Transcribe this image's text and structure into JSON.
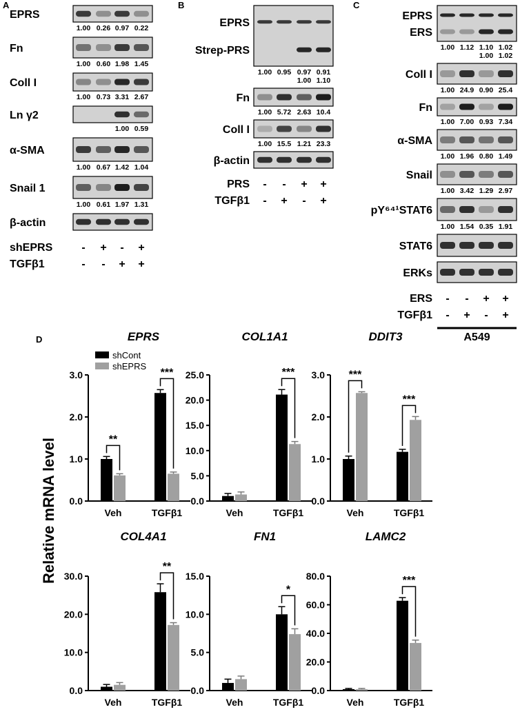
{
  "panels": {
    "A": {
      "letter": "A",
      "blots": [
        {
          "label": "EPRS",
          "h": 24,
          "intensity": [
            0.75,
            0.3,
            0.75,
            0.3
          ],
          "quant": [
            [
              "1.00",
              "0.26",
              "0.97",
              "0.22"
            ]
          ]
        },
        {
          "label": "Fn",
          "h": 30,
          "intensity": [
            0.45,
            0.3,
            0.75,
            0.6
          ],
          "quant": [
            [
              "1.00",
              "0.60",
              "1.98",
              "1.45"
            ]
          ]
        },
        {
          "label": "Coll I",
          "h": 26,
          "intensity": [
            0.35,
            0.3,
            0.85,
            0.75
          ],
          "quant": [
            [
              "1.00",
              "0.73",
              "3.31",
              "2.67"
            ]
          ]
        },
        {
          "label": "Ln γ2",
          "h": 24,
          "intensity": [
            0,
            0,
            0.8,
            0.5
          ],
          "quant": [
            [
              "",
              "",
              "1.00",
              "0.59"
            ]
          ]
        },
        {
          "label": "α-SMA",
          "h": 34,
          "intensity": [
            0.75,
            0.55,
            0.85,
            0.6
          ],
          "quant": [
            [
              "1.00",
              "0.67",
              "1.42",
              "1.04"
            ]
          ]
        },
        {
          "label": "Snail 1",
          "h": 32,
          "intensity": [
            0.55,
            0.35,
            0.9,
            0.7
          ],
          "quant": [
            [
              "1.00",
              "0.61",
              "1.97",
              "1.31"
            ]
          ]
        },
        {
          "label": "β-actin",
          "h": 24,
          "intensity": [
            0.8,
            0.8,
            0.8,
            0.8
          ],
          "quant": []
        }
      ],
      "conditions": [
        {
          "label": "shEPRS",
          "signs": [
            "-",
            "+",
            "-",
            "+"
          ]
        },
        {
          "label": "TGFβ1",
          "signs": [
            "-",
            "-",
            "+",
            "+"
          ]
        }
      ]
    },
    "B": {
      "letter": "B",
      "blots": [
        {
          "label": "EPRS",
          "label2": "Strep-PRS",
          "h": 88,
          "intensity": [
            0.75,
            0.75,
            0.75,
            0.75
          ],
          "intensity2": [
            0,
            0,
            0.85,
            0.85
          ],
          "quant": [
            [
              "1.00",
              "0.95",
              "0.97",
              "0.91"
            ],
            [
              "",
              "",
              "1.00",
              "1.10"
            ]
          ]
        },
        {
          "label": "Fn",
          "h": 26,
          "intensity": [
            0.3,
            0.8,
            0.55,
            0.9
          ],
          "quant": [
            [
              "1.00",
              "5.72",
              "2.63",
              "10.4"
            ]
          ]
        },
        {
          "label": "Coll I",
          "h": 26,
          "intensity": [
            0.15,
            0.7,
            0.35,
            0.8
          ],
          "quant": [
            [
              "1.00",
              "15.5",
              "1.21",
              "23.3"
            ]
          ]
        },
        {
          "label": "β-actin",
          "h": 24,
          "intensity": [
            0.8,
            0.8,
            0.8,
            0.8
          ],
          "quant": []
        }
      ],
      "conditions": [
        {
          "label": "PRS",
          "signs": [
            "-",
            "-",
            "+",
            "+"
          ]
        },
        {
          "label": "TGFβ1",
          "signs": [
            "-",
            "+",
            "-",
            "+"
          ]
        }
      ]
    },
    "C": {
      "letter": "C",
      "blots": [
        {
          "label": "EPRS",
          "label2": "ERS",
          "h": 52,
          "intensity": [
            0.85,
            0.85,
            0.85,
            0.85
          ],
          "intensity2": [
            0.25,
            0.25,
            0.85,
            0.85
          ],
          "quant": [
            [
              "1.00",
              "1.12",
              "1.10",
              "1.02"
            ],
            [
              "",
              "",
              "1.00",
              "1.02"
            ]
          ]
        },
        {
          "label": "Coll I",
          "h": 30,
          "intensity": [
            0.25,
            0.8,
            0.25,
            0.8
          ],
          "quant": [
            [
              "1.00",
              "24.9",
              "0.90",
              "25.4"
            ]
          ]
        },
        {
          "label": "Fn",
          "h": 26,
          "intensity": [
            0.2,
            0.9,
            0.2,
            0.9
          ],
          "quant": [
            [
              "1.00",
              "7.00",
              "0.93",
              "7.34"
            ]
          ]
        },
        {
          "label": "α-SMA",
          "h": 30,
          "intensity": [
            0.4,
            0.6,
            0.45,
            0.6
          ],
          "quant": [
            [
              "1.00",
              "1.96",
              "0.80",
              "1.49"
            ]
          ]
        },
        {
          "label": "Snail",
          "h": 30,
          "intensity": [
            0.3,
            0.6,
            0.4,
            0.6
          ],
          "quant": [
            [
              "1.00",
              "3.42",
              "1.29",
              "2.97"
            ]
          ]
        },
        {
          "label": "pY⁶⁴¹STAT6",
          "h": 32,
          "intensity": [
            0.5,
            0.8,
            0.25,
            0.8
          ],
          "quant": [
            [
              "1.00",
              "1.54",
              "0.35",
              "1.91"
            ]
          ]
        },
        {
          "label": "STAT6",
          "h": 32,
          "intensity": [
            0.8,
            0.8,
            0.8,
            0.8
          ],
          "quant": []
        },
        {
          "label": "ERKs",
          "h": 30,
          "intensity": [
            0.8,
            0.8,
            0.8,
            0.8
          ],
          "quant": []
        }
      ],
      "conditions": [
        {
          "label": "ERS",
          "signs": [
            "-",
            "-",
            "+",
            "+"
          ]
        },
        {
          "label": "TGFβ1",
          "signs": [
            "-",
            "+",
            "-",
            "+"
          ]
        }
      ],
      "cell_line": "A549"
    },
    "D": {
      "letter": "D"
    }
  },
  "ylabel_shared": "Relative mRNA level",
  "legend": [
    {
      "name": "shCont",
      "color": "#000000"
    },
    {
      "name": "shEPRS",
      "color": "#a0a0a0"
    }
  ],
  "chart_data": [
    {
      "type": "bar",
      "title": "EPRS",
      "categories": [
        "Veh",
        "TGFβ1"
      ],
      "ylim": [
        0,
        3
      ],
      "ticks": [
        "0.0",
        "1.0",
        "2.0",
        "3.0"
      ],
      "tick_values": [
        0,
        1,
        2,
        3
      ],
      "series": [
        {
          "name": "shCont",
          "values": [
            1.0,
            2.57
          ],
          "err": [
            0.06,
            0.08
          ]
        },
        {
          "name": "shEPRS",
          "values": [
            0.61,
            0.65
          ],
          "err": [
            0.04,
            0.04
          ]
        }
      ],
      "significance": [
        "**",
        "***"
      ]
    },
    {
      "type": "bar",
      "title": "COL1A1",
      "categories": [
        "Veh",
        "TGFβ1"
      ],
      "ylim": [
        0,
        25
      ],
      "ticks": [
        "0.0",
        "5.0",
        "10.0",
        "15.0",
        "20.0",
        "25.0"
      ],
      "tick_values": [
        0,
        5,
        10,
        15,
        20,
        25
      ],
      "series": [
        {
          "name": "shCont",
          "values": [
            1.0,
            21.1
          ],
          "err": [
            0.5,
            1.0
          ]
        },
        {
          "name": "shEPRS",
          "values": [
            1.3,
            11.3
          ],
          "err": [
            0.5,
            0.5
          ]
        }
      ],
      "significance": [
        "",
        "***"
      ]
    },
    {
      "type": "bar",
      "title": "DDIT3",
      "categories": [
        "Veh",
        "TGFβ1"
      ],
      "ylim": [
        0,
        3
      ],
      "ticks": [
        "0.0",
        "1.0",
        "2.0",
        "3.0"
      ],
      "tick_values": [
        0,
        1,
        2,
        3
      ],
      "series": [
        {
          "name": "shCont",
          "values": [
            1.0,
            1.17
          ],
          "err": [
            0.07,
            0.06
          ]
        },
        {
          "name": "shEPRS",
          "values": [
            2.57,
            1.93
          ],
          "err": [
            0.03,
            0.08
          ]
        }
      ],
      "significance": [
        "***",
        "***"
      ]
    },
    {
      "type": "bar",
      "title": "COL4A1",
      "categories": [
        "Veh",
        "TGFβ1"
      ],
      "ylim": [
        0,
        30
      ],
      "ticks": [
        "0.0",
        "10.0",
        "20.0",
        "30.0"
      ],
      "tick_values": [
        0,
        10,
        20,
        30
      ],
      "series": [
        {
          "name": "shCont",
          "values": [
            1.0,
            25.8
          ],
          "err": [
            0.6,
            2.2
          ]
        },
        {
          "name": "shEPRS",
          "values": [
            1.5,
            17.2
          ],
          "err": [
            0.6,
            0.6
          ]
        }
      ],
      "significance": [
        "",
        "**"
      ]
    },
    {
      "type": "bar",
      "title": "FN1",
      "categories": [
        "Veh",
        "TGFβ1"
      ],
      "ylim": [
        0,
        15
      ],
      "ticks": [
        "0.0",
        "5.0",
        "10.0",
        "15.0"
      ],
      "tick_values": [
        0,
        5,
        10,
        15
      ],
      "series": [
        {
          "name": "shCont",
          "values": [
            1.0,
            10.0
          ],
          "err": [
            0.5,
            1.0
          ]
        },
        {
          "name": "shEPRS",
          "values": [
            1.5,
            7.4
          ],
          "err": [
            0.4,
            0.7
          ]
        }
      ],
      "significance": [
        "",
        "*"
      ]
    },
    {
      "type": "bar",
      "title": "LAMC2",
      "categories": [
        "Veh",
        "TGFβ1"
      ],
      "ylim": [
        0,
        80
      ],
      "ticks": [
        "0.0",
        "20.0",
        "40.0",
        "60.0",
        "80.0"
      ],
      "tick_values": [
        0,
        20,
        40,
        60,
        80
      ],
      "series": [
        {
          "name": "shCont",
          "values": [
            1.0,
            62.8
          ],
          "err": [
            0.5,
            2.2
          ]
        },
        {
          "name": "shEPRS",
          "values": [
            1.0,
            33.3
          ],
          "err": [
            0.5,
            2.0
          ]
        }
      ],
      "significance": [
        "",
        "***"
      ]
    }
  ]
}
